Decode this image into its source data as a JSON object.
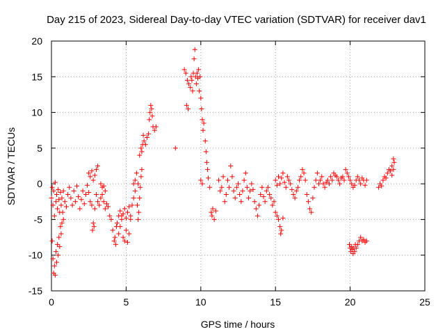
{
  "chart_data": {
    "type": "scatter",
    "title": "Day 215 of 2023, Sidereal Day-to-day VTEC variation (SDTVAR) for receiver dav1",
    "xlabel": "GPS time / hours",
    "ylabel": "SDTVAR / TECUs",
    "xlim": [
      0,
      25
    ],
    "ylim": [
      -15,
      20
    ],
    "xticks": [
      0,
      5,
      10,
      15,
      20,
      25
    ],
    "yticks": [
      -15,
      -10,
      -5,
      0,
      5,
      10,
      15,
      20
    ],
    "xtick_labels": [
      "0",
      "5",
      "10",
      "15",
      "20",
      "25"
    ],
    "ytick_labels": [
      "-15",
      "-10",
      "-5",
      "0",
      "5",
      "10",
      "15",
      "20"
    ],
    "grid": true,
    "marker": "+",
    "color": "#ff0000",
    "series": [
      {
        "name": "SDTVAR",
        "points": [
          [
            0.0,
            -2.0
          ],
          [
            0.05,
            -8.0
          ],
          [
            0.1,
            -10.5
          ],
          [
            0.15,
            -12.5
          ],
          [
            0.2,
            -11.5
          ],
          [
            0.25,
            -12.8
          ],
          [
            0.3,
            -9.5
          ],
          [
            0.35,
            -11.0
          ],
          [
            0.4,
            -8.5
          ],
          [
            0.45,
            -10.0
          ],
          [
            0.5,
            -7.5
          ],
          [
            0.55,
            -8.8
          ],
          [
            0.6,
            -6.0
          ],
          [
            0.65,
            -7.0
          ],
          [
            0.7,
            -5.5
          ],
          [
            0.75,
            -4.0
          ],
          [
            0.8,
            -5.0
          ],
          [
            0.05,
            -0.5
          ],
          [
            0.1,
            -3.0
          ],
          [
            0.15,
            -1.0
          ],
          [
            0.2,
            -4.5
          ],
          [
            0.25,
            0.2
          ],
          [
            0.3,
            -2.5
          ],
          [
            0.35,
            -1.5
          ],
          [
            0.4,
            -3.5
          ],
          [
            0.45,
            -0.8
          ],
          [
            0.5,
            -2.2
          ],
          [
            0.55,
            -4.0
          ],
          [
            0.6,
            -1.2
          ],
          [
            0.65,
            -3.0
          ],
          [
            0.7,
            -2.0
          ],
          [
            0.8,
            -1.0
          ],
          [
            0.9,
            -2.5
          ],
          [
            1.0,
            -3.2
          ],
          [
            1.1,
            -1.5
          ],
          [
            1.2,
            -0.5
          ],
          [
            1.3,
            -2.0
          ],
          [
            1.4,
            -3.0
          ],
          [
            1.5,
            -1.0
          ],
          [
            1.6,
            -2.5
          ],
          [
            1.7,
            -0.3
          ],
          [
            1.8,
            -1.8
          ],
          [
            1.9,
            -3.5
          ],
          [
            2.0,
            -2.2
          ],
          [
            2.1,
            -1.0
          ],
          [
            2.2,
            -2.8
          ],
          [
            2.3,
            -1.5
          ],
          [
            2.4,
            -0.2
          ],
          [
            2.5,
            -1.2
          ],
          [
            2.6,
            -2.5
          ],
          [
            2.7,
            -3.0
          ],
          [
            2.75,
            -6.5
          ],
          [
            2.8,
            -5.5
          ],
          [
            2.85,
            -6.0
          ],
          [
            2.9,
            -3.5
          ],
          [
            2.5,
            1.5
          ],
          [
            2.6,
            1.0
          ],
          [
            2.7,
            1.8
          ],
          [
            2.8,
            0.5
          ],
          [
            2.9,
            1.2
          ],
          [
            3.0,
            2.0
          ],
          [
            3.1,
            2.5
          ],
          [
            3.0,
            -1.5
          ],
          [
            3.1,
            -2.5
          ],
          [
            3.2,
            -3.0
          ],
          [
            3.3,
            -2.0
          ],
          [
            3.4,
            -1.5
          ],
          [
            3.5,
            -2.5
          ],
          [
            3.6,
            -3.5
          ],
          [
            3.7,
            -2.8
          ],
          [
            3.8,
            -3.2
          ],
          [
            3.9,
            -4.5
          ],
          [
            3.3,
            0.0
          ],
          [
            3.4,
            -0.5
          ],
          [
            3.5,
            -0.3
          ],
          [
            3.6,
            -1.0
          ],
          [
            4.0,
            -5.0
          ],
          [
            4.1,
            -6.5
          ],
          [
            4.2,
            -8.0
          ],
          [
            4.25,
            -7.5
          ],
          [
            4.3,
            -8.5
          ],
          [
            4.35,
            -6.0
          ],
          [
            4.4,
            -5.5
          ],
          [
            4.5,
            -7.0
          ],
          [
            4.6,
            -6.0
          ],
          [
            4.7,
            -4.5
          ],
          [
            4.8,
            -7.5
          ],
          [
            4.9,
            -8.0
          ],
          [
            5.0,
            -6.5
          ],
          [
            5.1,
            -8.2
          ],
          [
            5.2,
            -7.0
          ],
          [
            5.3,
            -5.0
          ],
          [
            4.5,
            -4.5
          ],
          [
            4.6,
            -3.8
          ],
          [
            4.7,
            -5.0
          ],
          [
            4.8,
            -4.2
          ],
          [
            4.9,
            -3.5
          ],
          [
            5.0,
            -4.8
          ],
          [
            5.1,
            -4.0
          ],
          [
            5.2,
            -3.2
          ],
          [
            5.3,
            -4.5
          ],
          [
            5.4,
            -3.0
          ],
          [
            5.5,
            -2.0
          ],
          [
            5.6,
            -1.0
          ],
          [
            5.5,
            0.0
          ],
          [
            5.6,
            0.5
          ],
          [
            5.7,
            1.5
          ],
          [
            5.8,
            0.0
          ],
          [
            5.75,
            -3.0
          ],
          [
            5.8,
            -5.0
          ],
          [
            5.85,
            -4.0
          ],
          [
            5.9,
            -2.0
          ],
          [
            5.95,
            -0.5
          ],
          [
            6.0,
            1.0
          ],
          [
            6.05,
            2.0
          ],
          [
            5.9,
            4.0
          ],
          [
            6.0,
            5.0
          ],
          [
            6.05,
            4.5
          ],
          [
            6.1,
            5.5
          ],
          [
            6.15,
            6.8
          ],
          [
            6.2,
            6.0
          ],
          [
            6.3,
            5.5
          ],
          [
            6.4,
            6.5
          ],
          [
            6.5,
            7.0
          ],
          [
            6.55,
            9.0
          ],
          [
            6.6,
            10.0
          ],
          [
            6.65,
            11.0
          ],
          [
            6.7,
            10.5
          ],
          [
            6.75,
            9.5
          ],
          [
            6.8,
            8.0
          ],
          [
            6.9,
            7.5
          ],
          [
            7.0,
            8.0
          ],
          [
            8.3,
            5.0
          ],
          [
            8.9,
            16.0
          ],
          [
            9.0,
            15.5
          ],
          [
            9.05,
            11.0
          ],
          [
            9.1,
            14.5
          ],
          [
            9.15,
            10.5
          ],
          [
            9.2,
            14.0
          ],
          [
            9.3,
            13.5
          ],
          [
            9.35,
            15.0
          ],
          [
            9.4,
            14.5
          ],
          [
            9.45,
            13.0
          ],
          [
            9.5,
            15.5
          ],
          [
            9.55,
            17.5
          ],
          [
            9.6,
            18.8
          ],
          [
            9.65,
            15.0
          ],
          [
            9.7,
            14.0
          ],
          [
            9.75,
            15.5
          ],
          [
            9.8,
            14.8
          ],
          [
            9.85,
            16.0
          ],
          [
            9.9,
            13.0
          ],
          [
            9.95,
            15.0
          ],
          [
            10.0,
            12.0
          ],
          [
            10.05,
            10.5
          ],
          [
            10.1,
            9.0
          ],
          [
            10.15,
            7.5
          ],
          [
            10.2,
            8.5
          ],
          [
            10.3,
            6.0
          ],
          [
            10.35,
            4.5
          ],
          [
            10.4,
            3.0
          ],
          [
            10.45,
            2.0
          ],
          [
            10.0,
            0.5
          ],
          [
            10.1,
            0.0
          ],
          [
            10.5,
            0.8
          ],
          [
            10.6,
            -0.5
          ],
          [
            10.7,
            -4.0
          ],
          [
            10.75,
            -4.5
          ],
          [
            10.8,
            -3.5
          ],
          [
            10.9,
            -5.0
          ],
          [
            11.0,
            -3.8
          ],
          [
            11.2,
            0.5
          ],
          [
            11.3,
            -1.0
          ],
          [
            11.4,
            -0.5
          ],
          [
            11.5,
            1.0
          ],
          [
            11.6,
            -2.5
          ],
          [
            11.7,
            -1.5
          ],
          [
            11.8,
            0.5
          ],
          [
            11.9,
            -0.5
          ],
          [
            12.0,
            2.5
          ],
          [
            12.1,
            1.0
          ],
          [
            12.2,
            -1.0
          ],
          [
            12.3,
            -2.0
          ],
          [
            12.4,
            -0.5
          ],
          [
            12.5,
            0.0
          ],
          [
            12.6,
            -1.5
          ],
          [
            12.7,
            -2.5
          ],
          [
            12.8,
            -1.0
          ],
          [
            12.9,
            0.5
          ],
          [
            13.0,
            1.5
          ],
          [
            13.1,
            -0.5
          ],
          [
            13.2,
            -2.0
          ],
          [
            13.3,
            -1.0
          ],
          [
            13.4,
            0.0
          ],
          [
            13.5,
            -0.8
          ],
          [
            13.6,
            -2.5
          ],
          [
            13.7,
            -3.5
          ],
          [
            13.8,
            -4.5
          ],
          [
            13.9,
            -3.0
          ],
          [
            14.0,
            -1.5
          ],
          [
            14.1,
            -0.5
          ],
          [
            14.2,
            -1.8
          ],
          [
            14.3,
            -2.5
          ],
          [
            14.4,
            -1.0
          ],
          [
            14.5,
            -0.5
          ],
          [
            14.6,
            -1.5
          ],
          [
            14.7,
            -2.0
          ],
          [
            14.8,
            -3.0
          ],
          [
            14.9,
            -2.5
          ],
          [
            15.0,
            -4.0
          ],
          [
            15.1,
            -4.5
          ],
          [
            15.2,
            -5.0
          ],
          [
            15.3,
            -6.0
          ],
          [
            15.35,
            -7.0
          ],
          [
            15.4,
            -6.5
          ],
          [
            15.5,
            -4.8
          ],
          [
            15.0,
            0.5
          ],
          [
            15.1,
            -0.2
          ],
          [
            15.2,
            1.0
          ],
          [
            15.3,
            0.0
          ],
          [
            15.4,
            0.8
          ],
          [
            15.5,
            1.5
          ],
          [
            15.6,
            0.2
          ],
          [
            15.7,
            -0.5
          ],
          [
            15.8,
            1.0
          ],
          [
            15.9,
            0.5
          ],
          [
            16.0,
            0.0
          ],
          [
            16.1,
            -0.8
          ],
          [
            16.2,
            -1.5
          ],
          [
            16.3,
            -2.0
          ],
          [
            16.4,
            -1.0
          ],
          [
            16.5,
            -0.5
          ],
          [
            16.6,
            0.5
          ],
          [
            16.7,
            1.0
          ],
          [
            16.8,
            2.0
          ],
          [
            16.9,
            1.5
          ],
          [
            17.0,
            0.5
          ],
          [
            17.1,
            -1.5
          ],
          [
            17.2,
            -2.5
          ],
          [
            17.3,
            -3.5
          ],
          [
            17.4,
            -4.0
          ],
          [
            17.5,
            -2.0
          ],
          [
            17.6,
            -0.5
          ],
          [
            17.7,
            0.5
          ],
          [
            17.8,
            1.5
          ],
          [
            17.9,
            0.0
          ],
          [
            18.0,
            0.5
          ],
          [
            18.1,
            1.0
          ],
          [
            18.2,
            0.0
          ],
          [
            18.3,
            -0.5
          ],
          [
            18.4,
            0.2
          ],
          [
            18.5,
            0.5
          ],
          [
            18.6,
            0.0
          ],
          [
            18.7,
            1.0
          ],
          [
            18.8,
            0.5
          ],
          [
            18.9,
            1.5
          ],
          [
            19.0,
            1.2
          ],
          [
            19.1,
            1.0
          ],
          [
            19.2,
            0.5
          ],
          [
            19.3,
            0.0
          ],
          [
            19.4,
            0.8
          ],
          [
            19.5,
            1.0
          ],
          [
            19.6,
            0.5
          ],
          [
            19.7,
            2.0
          ],
          [
            19.8,
            1.5
          ],
          [
            19.9,
            1.0
          ],
          [
            20.0,
            0.5
          ],
          [
            20.1,
            0.0
          ],
          [
            20.2,
            -0.5
          ],
          [
            20.3,
            -0.2
          ],
          [
            20.4,
            0.5
          ],
          [
            20.5,
            1.0
          ],
          [
            20.6,
            0.5
          ],
          [
            20.7,
            0.0
          ],
          [
            20.8,
            0.8
          ],
          [
            20.9,
            0.5
          ],
          [
            21.0,
            -0.2
          ],
          [
            21.1,
            0.5
          ],
          [
            19.95,
            -8.5
          ],
          [
            20.0,
            -9.0
          ],
          [
            20.05,
            -9.5
          ],
          [
            20.1,
            -8.8
          ],
          [
            20.15,
            -9.2
          ],
          [
            20.2,
            -9.8
          ],
          [
            20.25,
            -9.0
          ],
          [
            20.3,
            -9.5
          ],
          [
            20.35,
            -8.5
          ],
          [
            20.4,
            -9.0
          ],
          [
            20.5,
            -8.5
          ],
          [
            20.6,
            -8.0
          ],
          [
            20.7,
            -7.5
          ],
          [
            20.8,
            -8.0
          ],
          [
            20.9,
            -7.8
          ],
          [
            21.0,
            -8.2
          ],
          [
            21.1,
            -8.0
          ],
          [
            21.9,
            -0.5
          ],
          [
            22.0,
            0.0
          ],
          [
            22.1,
            -0.3
          ],
          [
            22.2,
            0.5
          ],
          [
            22.3,
            1.0
          ],
          [
            22.4,
            0.8
          ],
          [
            22.5,
            1.5
          ],
          [
            22.6,
            2.0
          ],
          [
            22.7,
            1.8
          ],
          [
            22.8,
            2.5
          ],
          [
            22.9,
            3.5
          ],
          [
            22.95,
            3.0
          ],
          [
            22.8,
            1.2
          ],
          [
            22.9,
            2.0
          ]
        ]
      }
    ]
  }
}
